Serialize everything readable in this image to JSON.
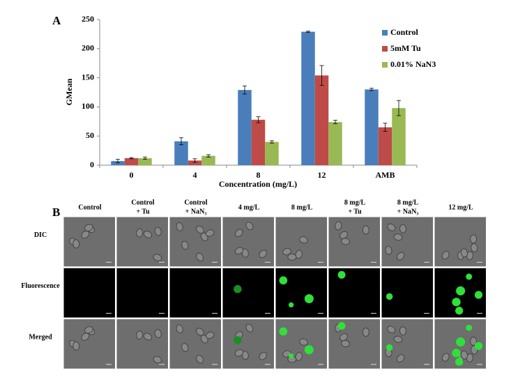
{
  "panel_a": {
    "label": "A"
  },
  "chart_data": {
    "type": "bar",
    "xlabel": "Concentration (mg/L)",
    "ylabel": "GMean",
    "categories": [
      "0",
      "4",
      "8",
      "12",
      "AMB"
    ],
    "series": [
      {
        "name": "Control",
        "color": "#4a7ebb",
        "values": [
          7,
          41,
          129,
          229,
          130
        ],
        "errors": [
          3,
          6,
          7,
          1,
          2
        ]
      },
      {
        "name": "5mM Tu",
        "color": "#be4b48",
        "values": [
          12,
          8,
          78,
          154,
          65
        ],
        "errors": [
          1,
          3,
          5,
          17,
          7
        ]
      },
      {
        "name": "0.01% NaN3",
        "color": "#98b954",
        "values": [
          12,
          16,
          40,
          74,
          98
        ],
        "errors": [
          2,
          2,
          2,
          3,
          13
        ]
      }
    ],
    "ylim": [
      0,
      250
    ],
    "yticks": [
      0,
      50,
      100,
      150,
      200,
      250
    ],
    "grid": false,
    "legend": "right"
  },
  "panel_b": {
    "label": "B",
    "columns": [
      [
        "Control"
      ],
      [
        "Control",
        "+ Tu"
      ],
      [
        "Control",
        "+ NaN₃"
      ],
      [
        "4 mg/L"
      ],
      [
        "8 mg/L"
      ],
      [
        "8 mg/L",
        "+ Tu"
      ],
      [
        "8 mg/L",
        "+ NaN₃"
      ],
      [
        "12 mg/L"
      ]
    ],
    "rows": [
      "DIC",
      "Fluorescence",
      "Merged"
    ]
  }
}
